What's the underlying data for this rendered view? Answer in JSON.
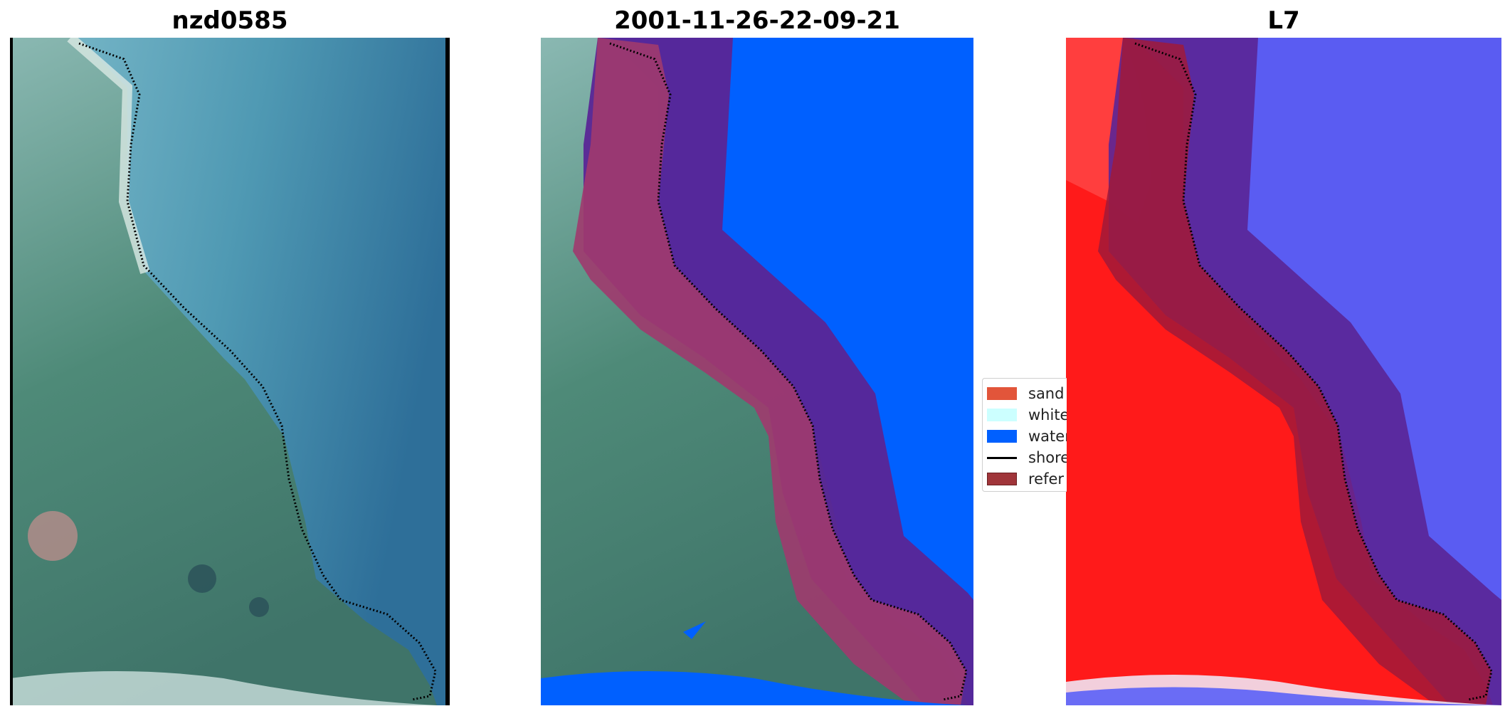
{
  "titles": {
    "panel1": "nzd0585",
    "panel2": "2001-11-26-22-09-21",
    "panel3": "L7"
  },
  "legend": {
    "items": [
      {
        "label": "sand",
        "color": "#e2553a",
        "kind": "patch"
      },
      {
        "label": "white",
        "color": "#ccffff",
        "kind": "patch"
      },
      {
        "label": "water",
        "color": "#0060ff",
        "kind": "patch"
      },
      {
        "label": "shore",
        "color": "#000000",
        "kind": "line"
      },
      {
        "label": "refer",
        "color": "#a0353a",
        "kind": "patch"
      }
    ]
  },
  "colors": {
    "water_class": "#0060ff",
    "land_class": "#ff1a1a",
    "buffer_land": "#a03a6e",
    "buffer_water": "#5a2596",
    "shoreline": "#000000"
  }
}
